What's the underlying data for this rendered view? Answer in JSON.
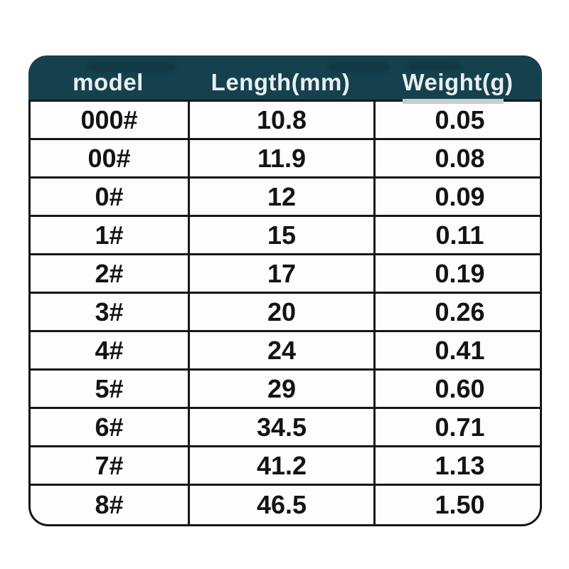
{
  "colors": {
    "header_bg": "#15414e",
    "header_text": "#e9eef0",
    "border": "#161616",
    "row_bg": "#fdfdfd",
    "grey_strip": "#c7ccd0"
  },
  "chart_data": {
    "type": "table",
    "title": "",
    "columns": [
      "model",
      "Length(mm)",
      "Weight(g)"
    ],
    "rows": [
      [
        "000#",
        "10.8",
        "0.05"
      ],
      [
        "00#",
        "11.9",
        "0.08"
      ],
      [
        "0#",
        "12",
        "0.09"
      ],
      [
        "1#",
        "15",
        "0.11"
      ],
      [
        "2#",
        "17",
        "0.19"
      ],
      [
        "3#",
        "20",
        "0.26"
      ],
      [
        "4#",
        "24",
        "0.41"
      ],
      [
        "5#",
        "29",
        "0.60"
      ],
      [
        "6#",
        "34.5",
        "0.71"
      ],
      [
        "7#",
        "41.2",
        "1.13"
      ],
      [
        "8#",
        "46.5",
        "1.50"
      ]
    ]
  }
}
